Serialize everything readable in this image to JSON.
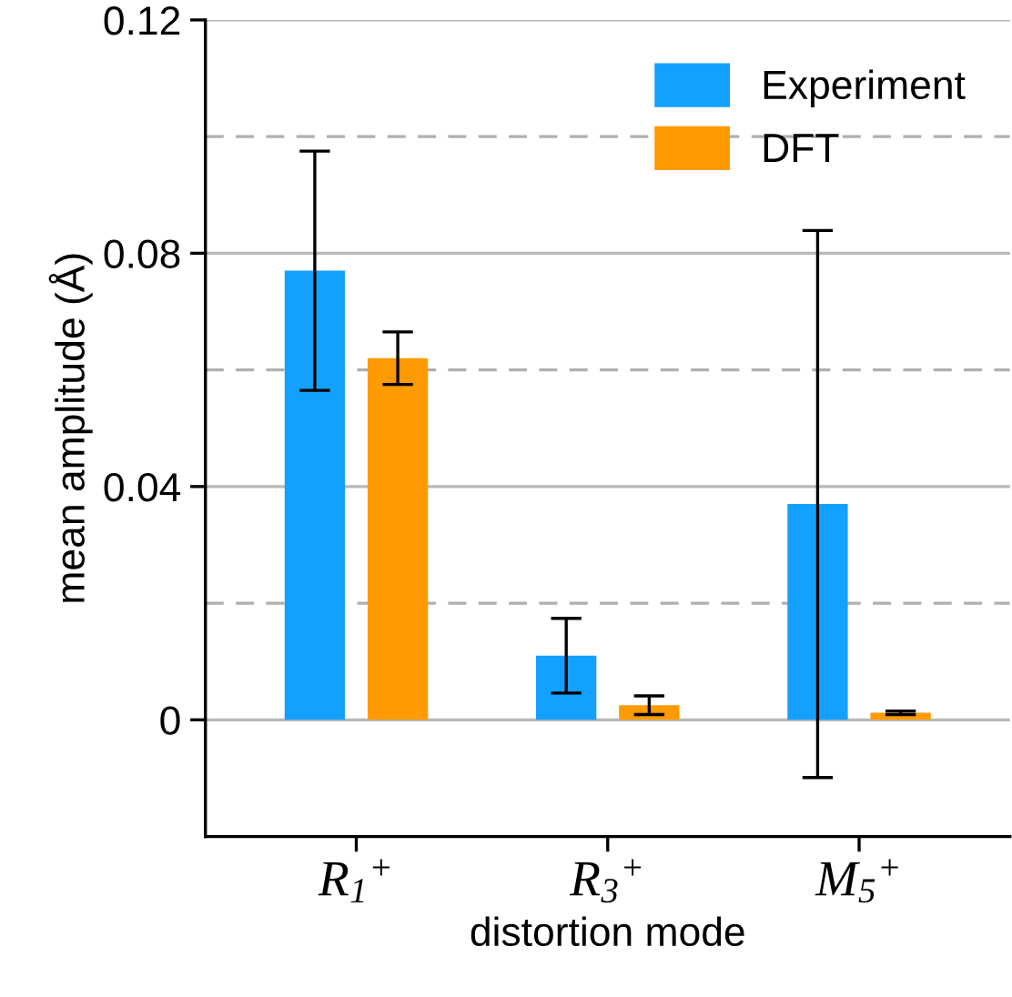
{
  "chart_data": {
    "type": "bar",
    "xlabel": "distortion mode",
    "ylabel": "mean amplitude (Å)",
    "categories": [
      "R$_{1}$$^{+}$",
      "R$_{3}$$^{+}$",
      "M$_{5}$$^{+}$"
    ],
    "series": [
      {
        "name": "Experiment",
        "color": "#14a0ff",
        "values": [
          0.077,
          0.011,
          0.037
        ],
        "errors": [
          0.0205,
          0.0064,
          0.0469
        ]
      },
      {
        "name": "DFT",
        "color": "#ff9a00",
        "values": [
          0.062,
          0.0025,
          0.0012
        ],
        "errors": [
          0.0045,
          0.0016,
          0.0003
        ]
      }
    ],
    "ylim": [
      -0.02,
      0.12
    ],
    "yticks": [
      0,
      0.04,
      0.08,
      0.12
    ],
    "grid": "y",
    "legend": "top right",
    "ref_lines": [
      {
        "axis": "y",
        "value": 0.02,
        "label": null,
        "color": "#b0b0b0",
        "line_style": "dashed"
      },
      {
        "axis": "y",
        "value": 0.06,
        "label": null,
        "color": "#b0b0b0",
        "line_style": "dashed"
      },
      {
        "axis": "y",
        "value": 0.1,
        "label": null,
        "color": "#b0b0b0",
        "line_style": "dashed"
      }
    ]
  }
}
